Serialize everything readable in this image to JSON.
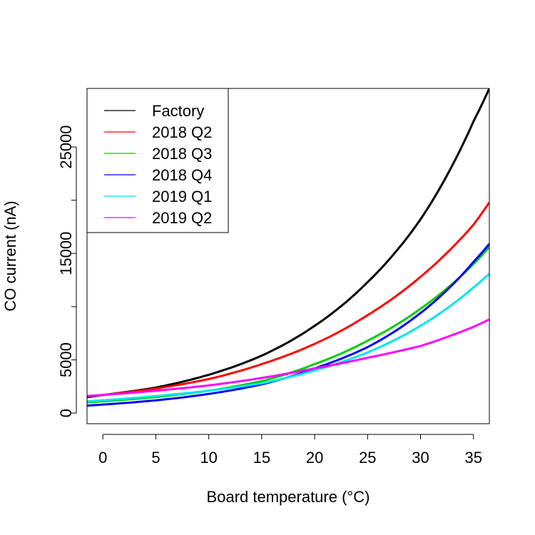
{
  "chart_data": {
    "type": "line",
    "title": "",
    "xlabel": "Board temperature  (°C)",
    "ylabel": "CO current  (nA)",
    "xlim": [
      -1.5,
      36.5
    ],
    "ylim": [
      -1000,
      30500
    ],
    "x_ticks": [
      0,
      5,
      10,
      15,
      20,
      25,
      30,
      35
    ],
    "y_ticks": [
      0,
      5000,
      10000,
      15000,
      20000,
      25000
    ],
    "y_tick_labels": [
      {
        "value": 0,
        "label": "0"
      },
      {
        "value": 5000,
        "label": "5000"
      },
      {
        "value": 15000,
        "label": "15000"
      },
      {
        "value": 25000,
        "label": "25000"
      }
    ],
    "grid": false,
    "legend_position": "top-left",
    "series": [
      {
        "name": "Factory",
        "color": "#000000",
        "x": [
          -1.5,
          0,
          5,
          10,
          15,
          20,
          25,
          30,
          35,
          36.5
        ],
        "y": [
          1500,
          1700,
          2400,
          3600,
          5400,
          8200,
          12300,
          18200,
          27400,
          30500
        ]
      },
      {
        "name": "2018 Q2",
        "color": "#ff0000",
        "x": [
          -1.5,
          0,
          5,
          10,
          15,
          20,
          25,
          30,
          35,
          36.5
        ],
        "y": [
          1600,
          1700,
          2300,
          3200,
          4600,
          6500,
          9200,
          12800,
          17700,
          19800
        ]
      },
      {
        "name": "2018 Q3",
        "color": "#00cd00",
        "x": [
          -1.5,
          0,
          5,
          10,
          15,
          20,
          25,
          30,
          35,
          36.5
        ],
        "y": [
          1000,
          1100,
          1500,
          2100,
          3000,
          4600,
          6800,
          9800,
          14000,
          15600
        ]
      },
      {
        "name": "2018 Q4",
        "color": "#0000ff",
        "x": [
          -1.5,
          0,
          5,
          10,
          15,
          20,
          25,
          30,
          35,
          36.5
        ],
        "y": [
          700,
          800,
          1200,
          1800,
          2700,
          4200,
          6200,
          9400,
          14200,
          15900
        ]
      },
      {
        "name": "2019 Q1",
        "color": "#00e5ee",
        "x": [
          -1.5,
          0,
          5,
          10,
          15,
          20,
          25,
          30,
          35,
          36.5
        ],
        "y": [
          1100,
          1200,
          1600,
          2100,
          2800,
          4000,
          5700,
          8200,
          11800,
          13100
        ]
      },
      {
        "name": "2019 Q2",
        "color": "#ff00ff",
        "x": [
          -1.5,
          0,
          5,
          10,
          15,
          20,
          25,
          30,
          35,
          36.5
        ],
        "y": [
          1600,
          1700,
          2100,
          2600,
          3300,
          4200,
          5200,
          6300,
          8100,
          8800
        ]
      }
    ]
  }
}
